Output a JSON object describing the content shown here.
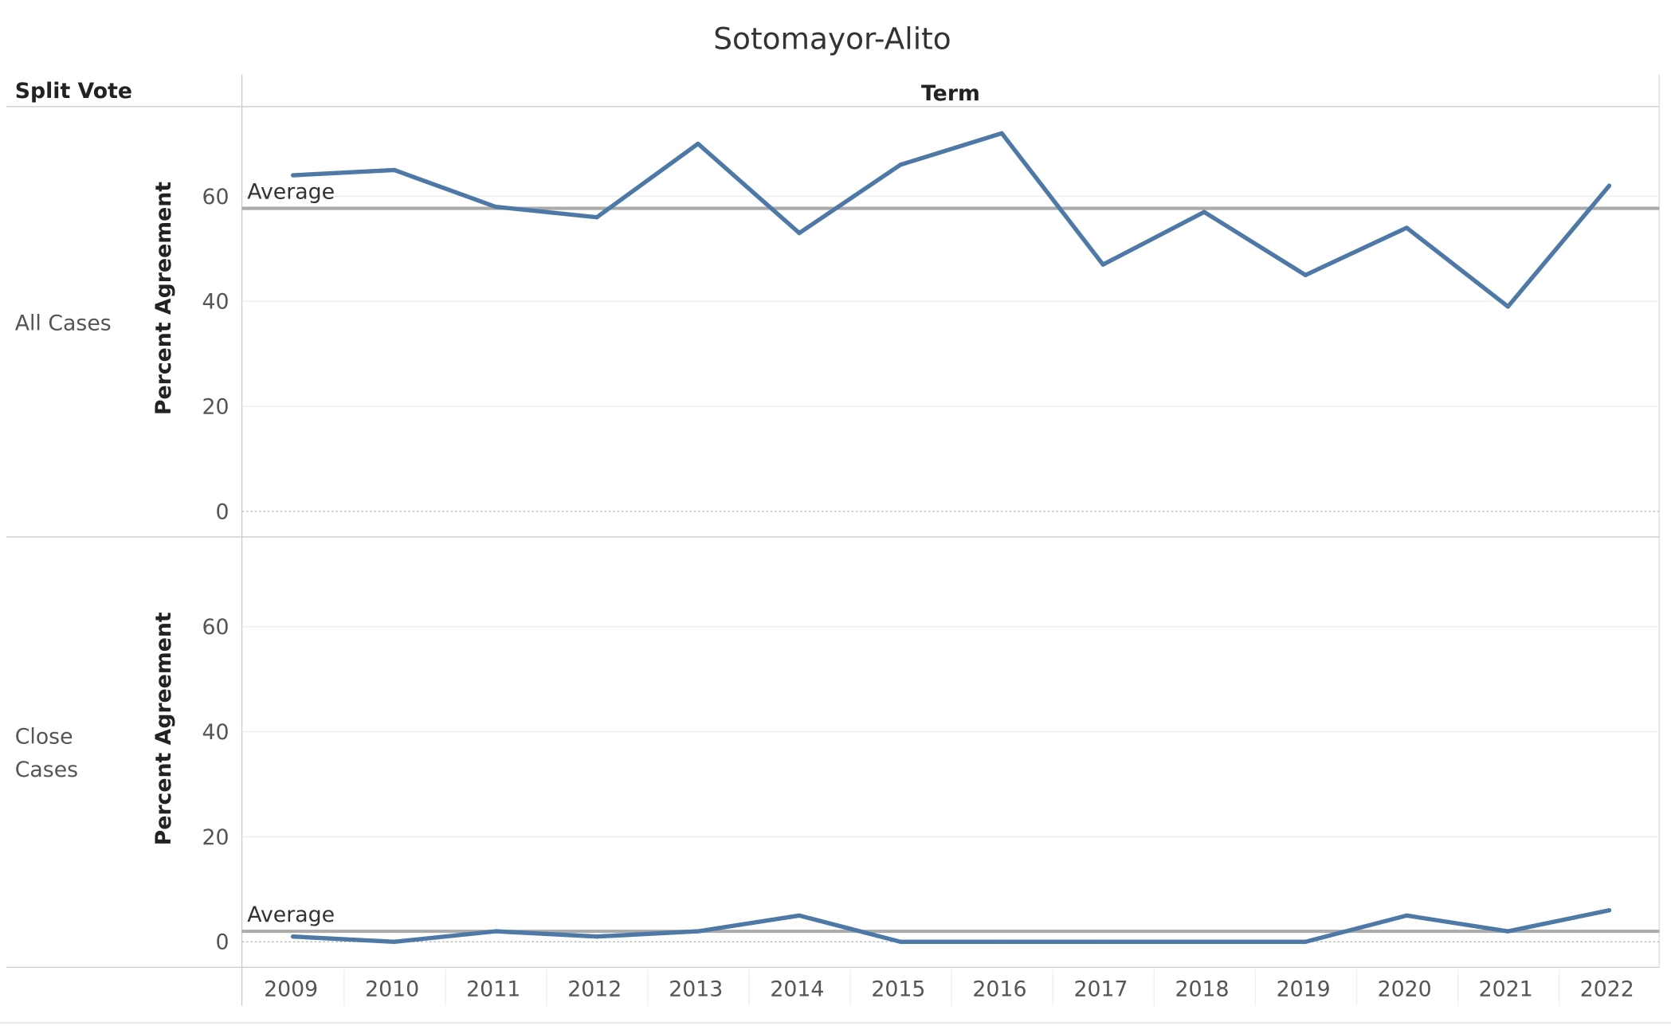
{
  "chart_data": {
    "type": "line",
    "title": "Sotomayor-Alito",
    "row_header": "Split Vote",
    "column_header": "Term",
    "x": [
      "2009",
      "2010",
      "2011",
      "2012",
      "2013",
      "2014",
      "2015",
      "2016",
      "2017",
      "2018",
      "2019",
      "2020",
      "2021",
      "2022"
    ],
    "ylim": [
      0,
      75
    ],
    "yticks": [
      "0",
      "20",
      "40",
      "60"
    ],
    "grid": true,
    "color": "#4e79a7",
    "reference_color": "#aaaaaa",
    "panels": [
      {
        "name": "All Cases",
        "label_lines": [
          "All Cases"
        ],
        "ylabel": "Percent Agreement",
        "values": [
          64,
          65,
          58,
          56,
          70,
          53,
          66,
          72,
          47,
          57,
          45,
          54,
          39,
          62
        ],
        "reference_label": "Average",
        "reference_value": 57.7
      },
      {
        "name": "Close Cases",
        "label_lines": [
          "Close",
          "Cases"
        ],
        "ylabel": "Percent Agreement",
        "values": [
          1,
          0,
          2,
          1,
          2,
          5,
          0,
          0,
          0,
          0,
          0,
          5,
          2,
          6
        ],
        "reference_label": "Average",
        "reference_value": 2
      }
    ]
  }
}
